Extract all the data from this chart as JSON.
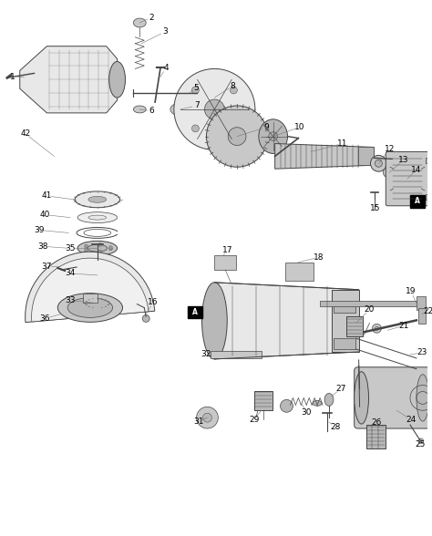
{
  "background_color": "#ffffff",
  "line_color": "#444444",
  "label_color": "#000000",
  "label_fontsize": 6.5,
  "fig_width": 4.74,
  "fig_height": 5.88,
  "dpi": 100
}
